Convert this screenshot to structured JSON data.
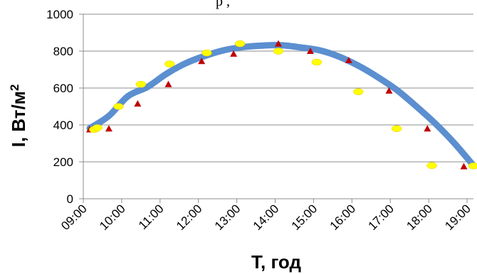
{
  "top_text": "р                 ,",
  "chart_data": {
    "type": "line",
    "title": "",
    "xlabel": "T, год",
    "ylabel": "I, Вт/м",
    "ylabel_superscript": "2",
    "yticks": [
      0,
      200,
      400,
      600,
      800,
      1000
    ],
    "ylim": [
      0,
      1000
    ],
    "xticks": [
      "09:00",
      "10:00",
      "11:00",
      "12:00",
      "13:00",
      "14:00",
      "15:00",
      "16:00",
      "17:00",
      "18:00",
      "19:00"
    ],
    "xlim": [
      "09:00",
      "19:10"
    ],
    "grid": "horizontal",
    "legend": "none",
    "series": [
      {
        "role": "trend-curve",
        "color": "#5b8fd0",
        "x": [
          "09:10",
          "09:40",
          "10:10",
          "10:40",
          "11:10",
          "11:40",
          "12:10",
          "12:40",
          "13:10",
          "13:40",
          "14:10",
          "14:40",
          "15:10",
          "15:40",
          "16:10",
          "16:40",
          "17:10",
          "17:40",
          "18:10",
          "18:40",
          "19:10"
        ],
        "y": [
          382,
          449,
          556,
          605,
          677,
          734,
          774,
          805,
          822,
          830,
          832,
          820,
          804,
          770,
          721,
          660,
          590,
          503,
          409,
          302,
          180
        ]
      },
      {
        "role": "markers-red",
        "color": "#c00000",
        "x": [
          "09:10",
          "09:40",
          "10:25",
          "11:13",
          "12:05",
          "12:55",
          "14:05",
          "14:55",
          "15:55",
          "16:58",
          "17:58",
          "18:55"
        ],
        "y": [
          375,
          380,
          515,
          620,
          745,
          785,
          840,
          800,
          750,
          585,
          380,
          175
        ]
      },
      {
        "role": "markers-yellow",
        "color": "#ffff00",
        "x": [
          "09:17",
          "09:22",
          "09:55",
          "10:30",
          "11:15",
          "12:13",
          "13:05",
          "14:05",
          "15:05",
          "16:10",
          "17:10",
          "18:05",
          "19:10"
        ],
        "y": [
          375,
          385,
          500,
          620,
          730,
          790,
          840,
          800,
          740,
          580,
          380,
          180,
          178
        ]
      }
    ]
  }
}
